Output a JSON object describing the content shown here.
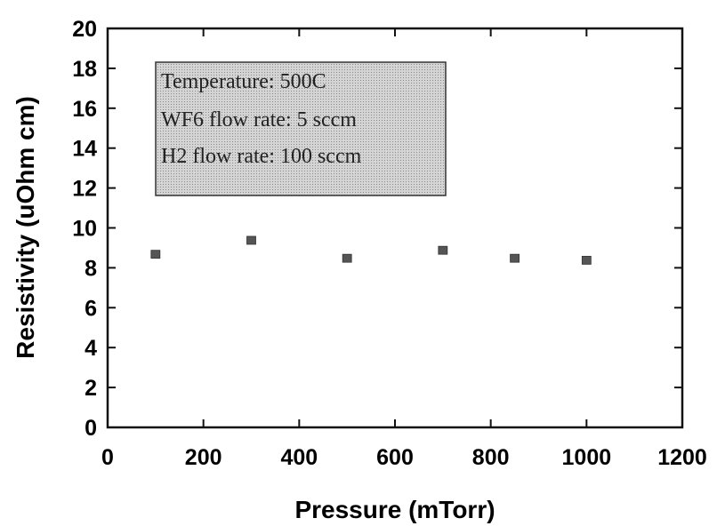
{
  "chart_data": {
    "type": "scatter",
    "title": "",
    "xlabel": "Pressure (mTorr)",
    "ylabel": "Resistivity (uOhm cm)",
    "xlim": [
      0,
      1200
    ],
    "ylim": [
      0,
      20
    ],
    "x_ticks": [
      0,
      200,
      400,
      600,
      800,
      1000,
      1200
    ],
    "y_ticks": [
      0,
      2,
      4,
      6,
      8,
      10,
      12,
      14,
      16,
      18,
      20
    ],
    "grid": false,
    "series": [
      {
        "points": [
          {
            "x": 100,
            "y": 8.7
          },
          {
            "x": 300,
            "y": 9.4
          },
          {
            "x": 500,
            "y": 8.5
          },
          {
            "x": 700,
            "y": 8.9
          },
          {
            "x": 850,
            "y": 8.5
          },
          {
            "x": 1000,
            "y": 8.4
          }
        ],
        "marker": "square",
        "color": "#555555"
      }
    ],
    "annotation": {
      "lines": [
        "Temperature: 500C",
        "WF6 flow rate: 5 sccm",
        "H2 flow rate: 100 sccm"
      ],
      "placement": "top-left",
      "background": "#c8c8c8"
    }
  }
}
